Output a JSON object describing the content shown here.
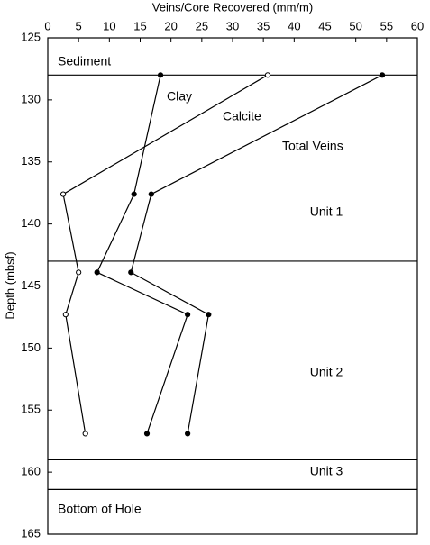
{
  "chart_data": {
    "type": "line",
    "x_label": "Veins/Core Recovered (mm/m)",
    "y_label": "Depth (mbsf)",
    "xlim": [
      0,
      60
    ],
    "xticks": [
      0,
      5,
      10,
      15,
      20,
      25,
      30,
      35,
      40,
      45,
      50,
      55,
      60
    ],
    "ylim": [
      125,
      165
    ],
    "yticks": [
      125,
      130,
      135,
      140,
      145,
      150,
      155,
      160,
      165
    ],
    "depths": [
      128,
      137.6,
      143.9,
      147.3,
      156.9
    ],
    "series": [
      {
        "name": "Clay",
        "color": "#000000",
        "marker": "filled",
        "values": [
          18.3,
          14.0,
          8.0,
          22.7,
          16.1
        ]
      },
      {
        "name": "Calcite",
        "color": "#000000",
        "marker": "open",
        "values": [
          35.7,
          2.5,
          5.0,
          2.9,
          6.1
        ]
      },
      {
        "name": "Total Veins",
        "color": "#000000",
        "marker": "filled",
        "values": [
          54.3,
          16.8,
          13.5,
          26.1,
          22.7
        ]
      }
    ],
    "boundaries": [
      128,
      143,
      159,
      161.4
    ],
    "annotations": [
      "Sediment",
      "Unit 1",
      "Unit 2",
      "Unit 3",
      "Bottom of Hole"
    ]
  }
}
